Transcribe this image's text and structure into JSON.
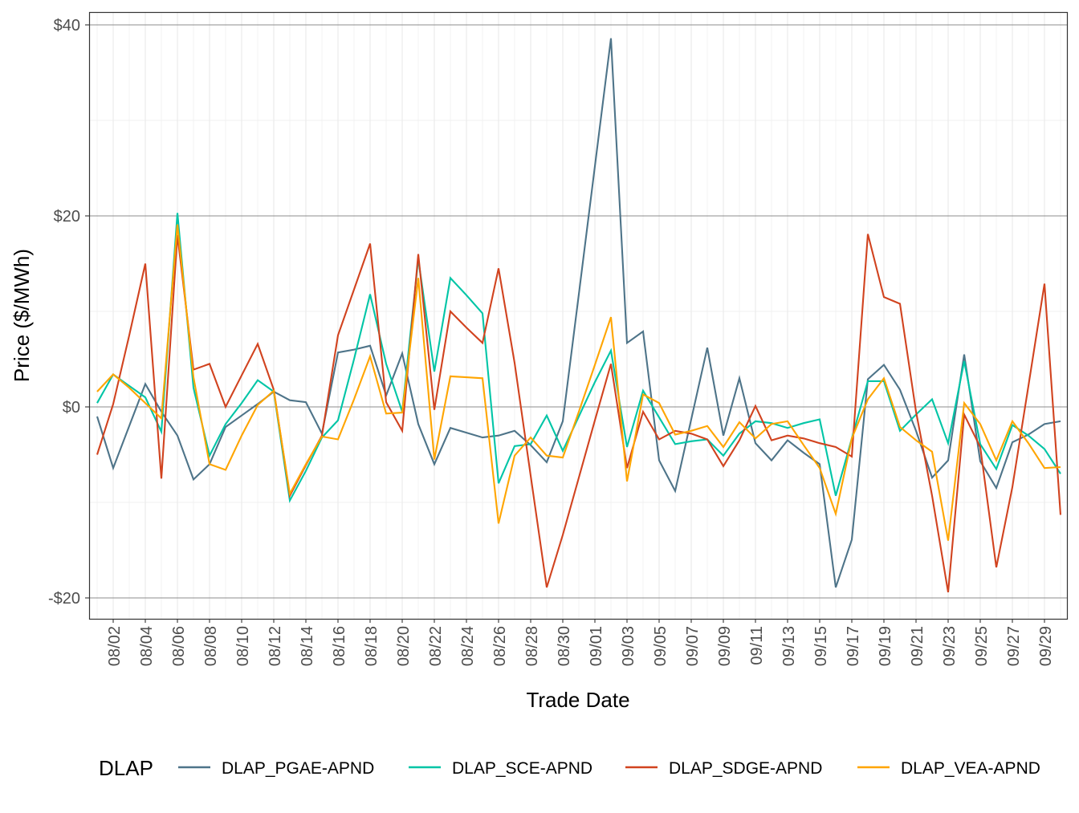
{
  "chart_data": {
    "type": "line",
    "xlabel": "Trade Date",
    "ylabel": "Price ($/MWh)",
    "ylim": [
      -22.5,
      41.0
    ],
    "y_ticks": [
      -20,
      0,
      20,
      40
    ],
    "y_tick_labels": [
      "-$20",
      "$0",
      "$20",
      "$40"
    ],
    "grid": true,
    "legend": {
      "title": "DLAP",
      "placement": "bottom"
    },
    "x": [
      "08/01",
      "08/02",
      "08/03",
      "08/04",
      "08/05",
      "08/06",
      "08/07",
      "08/08",
      "08/09",
      "08/10",
      "08/11",
      "08/12",
      "08/13",
      "08/14",
      "08/15",
      "08/16",
      "08/17",
      "08/18",
      "08/19",
      "08/20",
      "08/21",
      "08/22",
      "08/23",
      "08/24",
      "08/25",
      "08/26",
      "08/27",
      "08/28",
      "08/29",
      "08/30",
      "08/31",
      "09/01",
      "09/02",
      "09/03",
      "09/04",
      "09/05",
      "09/06",
      "09/07",
      "09/08",
      "09/09",
      "09/10",
      "09/11",
      "09/12",
      "09/13",
      "09/14",
      "09/15",
      "09/16",
      "09/17",
      "09/18",
      "09/19",
      "09/20",
      "09/21",
      "09/22",
      "09/23",
      "09/24",
      "09/25",
      "09/26",
      "09/27",
      "09/28",
      "09/29",
      "09/30"
    ],
    "x_tick_labels": [
      "08/02",
      "08/04",
      "08/06",
      "08/08",
      "08/10",
      "08/12",
      "08/14",
      "08/16",
      "08/18",
      "08/20",
      "08/22",
      "08/24",
      "08/26",
      "08/28",
      "08/30",
      "09/01",
      "09/03",
      "09/05",
      "09/07",
      "09/09",
      "09/11",
      "09/13",
      "09/15",
      "09/17",
      "09/19",
      "09/21",
      "09/23",
      "09/25",
      "09/27",
      "09/29"
    ],
    "series": [
      {
        "name": "DLAP_PGAE-APND",
        "color": "#4e7489",
        "values": [
          -1.0,
          -6.4,
          -2.0,
          2.4,
          -0.5,
          -3.0,
          -7.6,
          -6.0,
          -2.1,
          -0.9,
          0.3,
          1.6,
          0.7,
          0.5,
          -2.8,
          5.7,
          6.0,
          6.4,
          1.2,
          5.6,
          -1.8,
          -6.0,
          -2.2,
          -2.7,
          -3.2,
          -3.0,
          -2.5,
          -4.0,
          -5.8,
          -1.5,
          11.8,
          25.2,
          38.6,
          6.7,
          7.9,
          -5.6,
          -8.8,
          -1.3,
          6.2,
          -3.0,
          3.0,
          -3.8,
          -5.6,
          -3.5,
          -4.8,
          -6.0,
          -18.9,
          -13.9,
          2.9,
          4.4,
          1.8,
          -2.5,
          -7.4,
          -5.6,
          5.5,
          -5.7,
          -8.5,
          -3.7,
          -2.9,
          -1.8,
          -1.5
        ]
      },
      {
        "name": "DLAP_SCE-APND",
        "color": "#00c5a6",
        "values": [
          0.4,
          3.4,
          2.2,
          1.0,
          -2.6,
          20.3,
          2.0,
          -5.1,
          -1.8,
          0.4,
          2.8,
          1.6,
          -9.8,
          -6.7,
          -3.2,
          -1.4,
          5.0,
          11.8,
          4.5,
          -0.5,
          15.5,
          3.7,
          13.5,
          11.7,
          9.8,
          -8.0,
          -4.1,
          -3.9,
          -0.9,
          -4.6,
          -1.0,
          2.6,
          5.9,
          -4.2,
          1.7,
          -1.1,
          -3.9,
          -3.6,
          -3.4,
          -5.1,
          -2.8,
          -1.5,
          -1.7,
          -2.2,
          -1.7,
          -1.3,
          -9.3,
          -3.3,
          2.7,
          2.7,
          -2.5,
          -0.8,
          0.8,
          -3.8,
          4.8,
          -3.9,
          -6.5,
          -1.9,
          -3.0,
          -4.4,
          -7.0
        ]
      },
      {
        "name": "DLAP_SDGE-APND",
        "color": "#d1431f",
        "values": [
          -5.0,
          0.3,
          7.5,
          15.0,
          -7.5,
          18.0,
          3.9,
          4.5,
          0.0,
          3.3,
          6.6,
          1.8,
          -9.3,
          -6.1,
          -3.0,
          7.5,
          12.3,
          17.1,
          0.5,
          -2.5,
          16.0,
          -0.3,
          10.0,
          8.3,
          6.7,
          14.5,
          4.6,
          -7.2,
          -18.9,
          -13.4,
          -7.4,
          -1.4,
          4.5,
          -6.4,
          -0.5,
          -3.4,
          -2.5,
          -2.8,
          -3.4,
          -6.2,
          -3.5,
          0.1,
          -3.5,
          -3.0,
          -3.3,
          -3.8,
          -4.2,
          -5.2,
          18.1,
          11.5,
          10.8,
          -0.5,
          -9.3,
          -19.4,
          -0.8,
          -4.2,
          -16.8,
          -8.4,
          2.2,
          12.9,
          -11.3
        ]
      },
      {
        "name": "DLAP_VEA-APND",
        "color": "#ffa500",
        "values": [
          1.6,
          3.4,
          2.0,
          0.4,
          -1.2,
          19.1,
          3.1,
          -6.0,
          -6.6,
          -3.0,
          0.2,
          1.7,
          -9.1,
          -6.0,
          -3.1,
          -3.4,
          0.8,
          5.3,
          -0.7,
          -0.6,
          13.5,
          -5.5,
          3.2,
          3.1,
          3.0,
          -12.2,
          -5.1,
          -3.2,
          -5.1,
          -5.3,
          -0.5,
          4.4,
          9.4,
          -7.8,
          1.3,
          0.4,
          -2.9,
          -2.5,
          -2.0,
          -4.2,
          -1.6,
          -3.3,
          -1.8,
          -1.5,
          -4.0,
          -6.4,
          -11.2,
          -3.3,
          0.8,
          3.0,
          -2.1,
          -3.5,
          -4.7,
          -14.0,
          0.4,
          -1.8,
          -5.6,
          -1.5,
          -3.8,
          -6.4,
          -6.3
        ]
      }
    ]
  }
}
